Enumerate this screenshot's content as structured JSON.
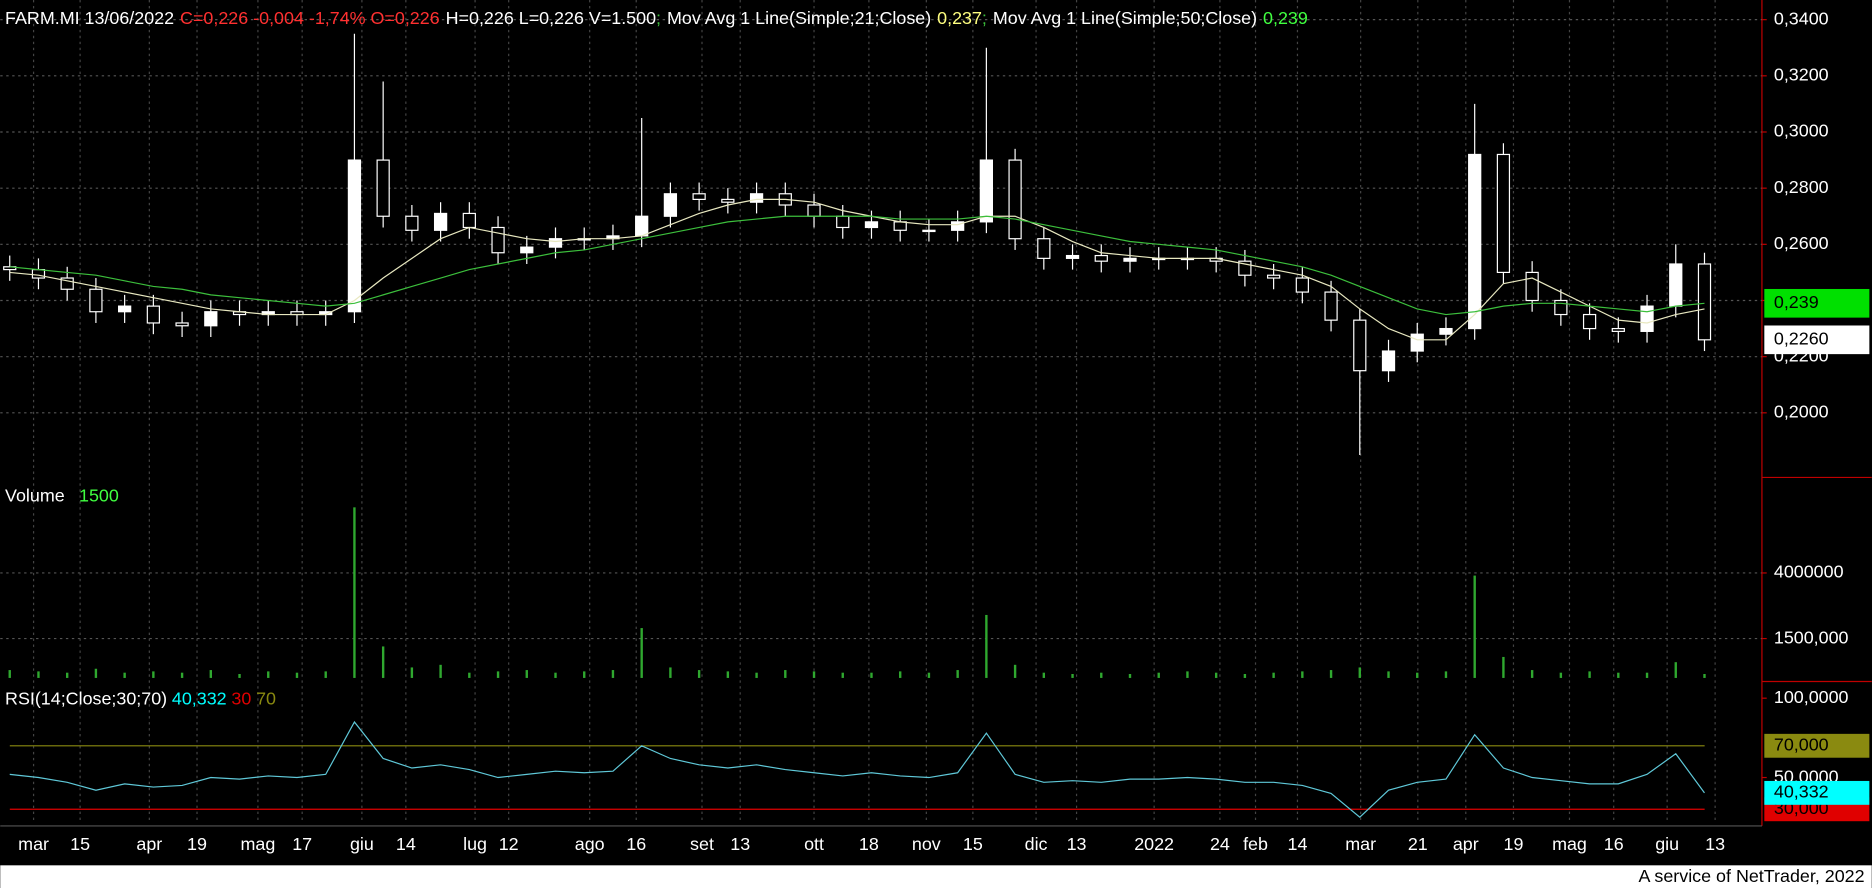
{
  "chart_data": [
    {
      "type": "candlestick",
      "title": [
        {
          "text": "FARM.MI 13/06/2022",
          "color": "#ffffff"
        },
        {
          "text": "C=0,226 -0,004 -1,74% O=0,226",
          "color": "#ff3030"
        },
        {
          "text": "H=0,226 L=0,226 V=1.500",
          "color": "#ffffff"
        }
      ],
      "separator": ";",
      "open": [
        0.252,
        0.251,
        0.248,
        0.244,
        0.236,
        0.238,
        0.232,
        0.231,
        0.236,
        0.235,
        0.236,
        0.235,
        0.236,
        0.29,
        0.27,
        0.265,
        0.271,
        0.266,
        0.257,
        0.259,
        0.262,
        0.262,
        0.263,
        0.27,
        0.278,
        0.276,
        0.275,
        0.278,
        0.274,
        0.27,
        0.266,
        0.268,
        0.265,
        0.265,
        0.268,
        0.29,
        0.262,
        0.255,
        0.256,
        0.254,
        0.255,
        0.255,
        0.255,
        0.254,
        0.249,
        0.248,
        0.243,
        0.233,
        0.215,
        0.222,
        0.228,
        0.23,
        0.292,
        0.25,
        0.24,
        0.235,
        0.23,
        0.229,
        0.238,
        0.253
      ],
      "high": [
        0.256,
        0.255,
        0.252,
        0.248,
        0.242,
        0.242,
        0.236,
        0.24,
        0.24,
        0.24,
        0.24,
        0.24,
        0.335,
        0.318,
        0.274,
        0.275,
        0.275,
        0.27,
        0.263,
        0.266,
        0.266,
        0.267,
        0.305,
        0.282,
        0.282,
        0.28,
        0.282,
        0.282,
        0.278,
        0.274,
        0.272,
        0.272,
        0.269,
        0.272,
        0.33,
        0.294,
        0.266,
        0.26,
        0.26,
        0.259,
        0.259,
        0.259,
        0.259,
        0.258,
        0.253,
        0.252,
        0.247,
        0.237,
        0.226,
        0.232,
        0.234,
        0.31,
        0.296,
        0.254,
        0.244,
        0.239,
        0.234,
        0.242,
        0.26,
        0.257
      ],
      "low": [
        0.247,
        0.244,
        0.24,
        0.232,
        0.232,
        0.228,
        0.227,
        0.227,
        0.231,
        0.231,
        0.231,
        0.231,
        0.232,
        0.266,
        0.261,
        0.261,
        0.262,
        0.253,
        0.253,
        0.255,
        0.258,
        0.258,
        0.259,
        0.266,
        0.272,
        0.271,
        0.271,
        0.27,
        0.266,
        0.262,
        0.262,
        0.261,
        0.261,
        0.261,
        0.264,
        0.258,
        0.251,
        0.251,
        0.25,
        0.25,
        0.251,
        0.251,
        0.25,
        0.245,
        0.244,
        0.239,
        0.229,
        0.185,
        0.211,
        0.218,
        0.224,
        0.226,
        0.246,
        0.236,
        0.231,
        0.226,
        0.225,
        0.225,
        0.234,
        0.222
      ],
      "close": [
        0.251,
        0.248,
        0.244,
        0.236,
        0.238,
        0.232,
        0.231,
        0.236,
        0.235,
        0.236,
        0.235,
        0.236,
        0.29,
        0.27,
        0.265,
        0.271,
        0.266,
        0.257,
        0.259,
        0.262,
        0.262,
        0.263,
        0.27,
        0.278,
        0.276,
        0.275,
        0.278,
        0.274,
        0.27,
        0.266,
        0.268,
        0.265,
        0.265,
        0.268,
        0.29,
        0.262,
        0.255,
        0.256,
        0.254,
        0.255,
        0.255,
        0.255,
        0.254,
        0.249,
        0.248,
        0.243,
        0.233,
        0.215,
        0.222,
        0.228,
        0.23,
        0.292,
        0.25,
        0.24,
        0.235,
        0.23,
        0.229,
        0.238,
        0.253,
        0.226
      ],
      "up_color": "#ffffff",
      "down_color": "#000000",
      "series": [
        {
          "name": "Mov Avg 1 Line(Simple;21;Close)",
          "last_label": "0,237",
          "label_color": "#ffff80",
          "color": "#e8e8c0",
          "values": [
            0.25,
            0.249,
            0.247,
            0.245,
            0.243,
            0.241,
            0.239,
            0.237,
            0.236,
            0.235,
            0.235,
            0.235,
            0.24,
            0.248,
            0.255,
            0.262,
            0.266,
            0.264,
            0.262,
            0.261,
            0.262,
            0.262,
            0.263,
            0.267,
            0.271,
            0.274,
            0.276,
            0.276,
            0.275,
            0.272,
            0.27,
            0.268,
            0.267,
            0.267,
            0.27,
            0.27,
            0.266,
            0.261,
            0.257,
            0.256,
            0.255,
            0.255,
            0.255,
            0.253,
            0.251,
            0.249,
            0.245,
            0.237,
            0.23,
            0.226,
            0.226,
            0.235,
            0.246,
            0.248,
            0.243,
            0.238,
            0.233,
            0.232,
            0.235,
            0.237
          ]
        },
        {
          "name": "Mov Avg 1 Line(Simple;50;Close)",
          "last_label": "0,239",
          "label_color": "#40ff40",
          "color": "#3cbf3c",
          "values": [
            0.252,
            0.251,
            0.25,
            0.249,
            0.247,
            0.245,
            0.244,
            0.242,
            0.241,
            0.24,
            0.239,
            0.238,
            0.239,
            0.242,
            0.245,
            0.248,
            0.251,
            0.253,
            0.255,
            0.257,
            0.258,
            0.26,
            0.262,
            0.264,
            0.266,
            0.268,
            0.269,
            0.27,
            0.27,
            0.27,
            0.27,
            0.269,
            0.269,
            0.269,
            0.27,
            0.269,
            0.267,
            0.265,
            0.263,
            0.261,
            0.26,
            0.259,
            0.258,
            0.256,
            0.254,
            0.252,
            0.249,
            0.245,
            0.241,
            0.237,
            0.235,
            0.236,
            0.238,
            0.239,
            0.239,
            0.238,
            0.237,
            0.236,
            0.238,
            0.239
          ]
        }
      ],
      "markers": [
        {
          "value": 0.239,
          "label": "0,239",
          "color": "#00e000"
        },
        {
          "value": 0.226,
          "label": "0,2260",
          "color": "#ffffff"
        }
      ],
      "xlim": [
        -0.33,
        61
      ],
      "ylim": [
        0.177,
        0.347
      ],
      "yticks": [
        {
          "value": 0.34,
          "label": "0,3400"
        },
        {
          "value": 0.32,
          "label": "0,3200"
        },
        {
          "value": 0.3,
          "label": "0,3000"
        },
        {
          "value": 0.28,
          "label": "0,2800"
        },
        {
          "value": 0.26,
          "label": "0,2600"
        },
        {
          "value": 0.24,
          "label": "0,2400"
        },
        {
          "value": 0.22,
          "label": "0,2200"
        },
        {
          "value": 0.2,
          "label": "0,2000"
        }
      ],
      "grid": true
    },
    {
      "type": "bar",
      "title": "Volume",
      "value_label": "1500",
      "value_label_color": "#40ff40",
      "color": "#2fa82f",
      "values": [
        300000,
        250000,
        200000,
        350000,
        200000,
        250000,
        200000,
        300000,
        150000,
        250000,
        200000,
        250000,
        6500000,
        1200000,
        400000,
        500000,
        200000,
        250000,
        300000,
        200000,
        250000,
        300000,
        1900000,
        400000,
        300000,
        250000,
        200000,
        300000,
        250000,
        200000,
        200000,
        250000,
        200000,
        300000,
        2400000,
        500000,
        200000,
        150000,
        200000,
        150000,
        200000,
        250000,
        200000,
        150000,
        200000,
        250000,
        300000,
        400000,
        250000,
        200000,
        250000,
        3900000,
        800000,
        300000,
        200000,
        250000,
        200000,
        200000,
        600000,
        150000
      ],
      "ylim": [
        0,
        7640000
      ],
      "yticks": [
        4000000,
        {
          "value": 1500000,
          "label": "1500,000"
        }
      ],
      "grid": true
    },
    {
      "type": "line",
      "title": "RSI(14;Close;30;70)",
      "last_label": "40,332",
      "color": "#5fc8d8",
      "marker_color": "#00ffff",
      "values": [
        52,
        50,
        47,
        42,
        46,
        44,
        45,
        50,
        49,
        51,
        50,
        52,
        85,
        62,
        56,
        58,
        55,
        50,
        52,
        54,
        53,
        54,
        70,
        62,
        58,
        56,
        58,
        55,
        53,
        51,
        53,
        51,
        50,
        53,
        78,
        52,
        47,
        48,
        47,
        49,
        49,
        50,
        49,
        47,
        47,
        45,
        40,
        25,
        42,
        47,
        49,
        77,
        56,
        50,
        48,
        46,
        46,
        52,
        65,
        40.332
      ],
      "levels": [
        {
          "value": 30,
          "label": "30",
          "marker": "30,000",
          "color": "#e00000"
        },
        {
          "value": 70,
          "label": "70",
          "marker": "70,000",
          "color": "#8a8a10"
        }
      ],
      "ylim": [
        21,
        109.75
      ],
      "yticks": [
        {
          "value": 100,
          "label": "100,0000"
        },
        {
          "value": 50,
          "label": "50,0000"
        }
      ],
      "xticks": [
        {
          "value": 0.83,
          "label": "mar"
        },
        {
          "value": 2.45,
          "label": "15"
        },
        {
          "value": 4.86,
          "label": "apr"
        },
        {
          "value": 6.52,
          "label": "19"
        },
        {
          "value": 8.64,
          "label": "mag"
        },
        {
          "value": 10.18,
          "label": "17"
        },
        {
          "value": 12.26,
          "label": "giu"
        },
        {
          "value": 13.79,
          "label": "14"
        },
        {
          "value": 16.2,
          "label": "lug"
        },
        {
          "value": 17.37,
          "label": "12"
        },
        {
          "value": 20.19,
          "label": "ago"
        },
        {
          "value": 21.81,
          "label": "16"
        },
        {
          "value": 24.1,
          "label": "set"
        },
        {
          "value": 25.43,
          "label": "13"
        },
        {
          "value": 28.0,
          "label": "ott"
        },
        {
          "value": 29.91,
          "label": "18"
        },
        {
          "value": 31.91,
          "label": "nov"
        },
        {
          "value": 33.53,
          "label": "15"
        },
        {
          "value": 35.73,
          "label": "dic"
        },
        {
          "value": 37.14,
          "label": "13"
        },
        {
          "value": 39.84,
          "label": "2022"
        },
        {
          "value": 42.13,
          "label": "24"
        },
        {
          "value": 43.37,
          "label": "feb"
        },
        {
          "value": 44.83,
          "label": "14"
        },
        {
          "value": 47.03,
          "label": "mar"
        },
        {
          "value": 49.02,
          "label": "21"
        },
        {
          "value": 50.69,
          "label": "apr"
        },
        {
          "value": 52.35,
          "label": "19"
        },
        {
          "value": 54.3,
          "label": "mag"
        },
        {
          "value": 55.84,
          "label": "16"
        },
        {
          "value": 57.7,
          "label": "giu"
        },
        {
          "value": 59.37,
          "label": "13"
        }
      ]
    }
  ],
  "footer": "A service of NetTrader, 2022"
}
